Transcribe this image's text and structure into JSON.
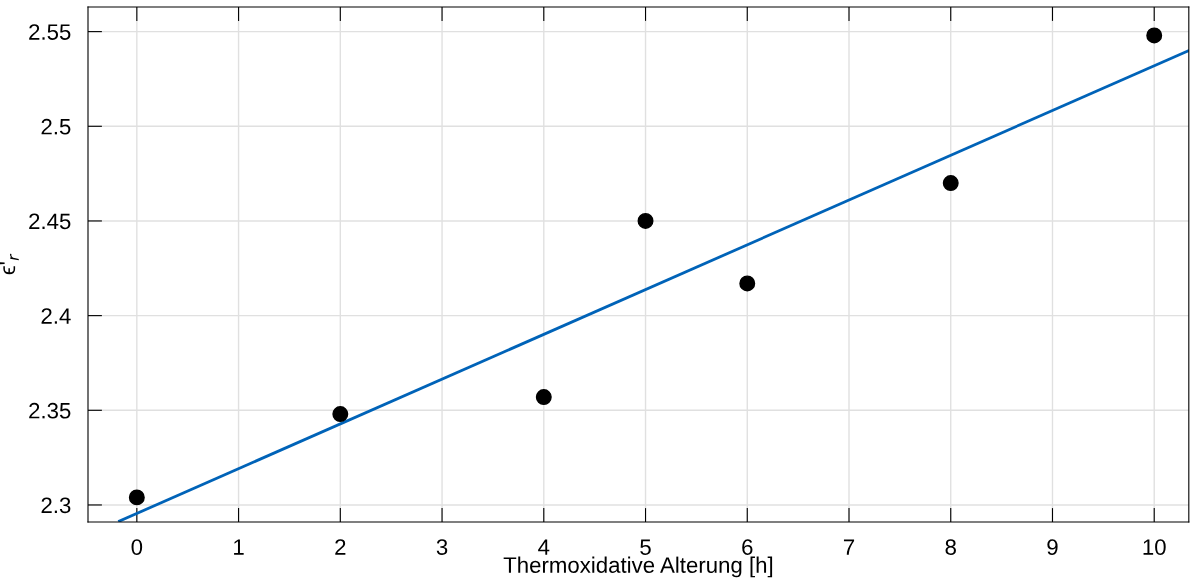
{
  "chart_data": {
    "type": "scatter",
    "xlabel": "Thermoxidative Alterung [h]",
    "ylabel": "ϵ'$_{r}$",
    "x": [
      0,
      2,
      4,
      5,
      6,
      8,
      10
    ],
    "series": [
      {
        "color": "#000000",
        "marker": "circle",
        "values": [
          2.304,
          2.348,
          2.357,
          2.45,
          2.417,
          2.47,
          2.548
        ]
      },
      {
        "type": "line",
        "color": "#0063b8",
        "marker": "none",
        "x": [
          -0.17,
          10.34
        ],
        "values": [
          2.2915,
          2.54
        ]
      }
    ],
    "xlim": [
      -0.48,
      10.34
    ],
    "ylim": [
      2.291,
      2.563
    ],
    "xticks": [
      0,
      1,
      2,
      3,
      4,
      5,
      6,
      7,
      8,
      9,
      10
    ],
    "yticks": [
      2.3,
      2.35,
      2.4,
      2.45,
      2.5,
      2.55
    ],
    "grid": true
  }
}
